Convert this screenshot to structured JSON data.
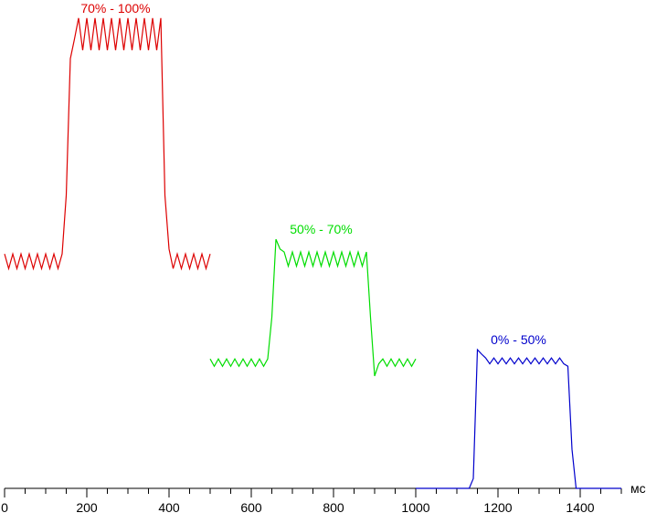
{
  "chart_data": {
    "type": "line",
    "xlabel": "мс",
    "xlim": [
      0,
      1500
    ],
    "ylim": [
      0,
      100
    ],
    "xticks": [
      0,
      200,
      400,
      600,
      800,
      1000,
      1200,
      1400
    ],
    "xminorticks": [
      0,
      50,
      100,
      150,
      200,
      250,
      300,
      350,
      400,
      450,
      500,
      550,
      600,
      650,
      700,
      750,
      800,
      850,
      900,
      950,
      1000,
      1050,
      1100,
      1150,
      1200,
      1250,
      1300,
      1350,
      1400,
      1450,
      1500
    ],
    "series": [
      {
        "name": "70% - 100%",
        "color": "#dd0000",
        "x": [
          0,
          10,
          20,
          30,
          40,
          50,
          60,
          70,
          80,
          90,
          100,
          110,
          120,
          130,
          140,
          150,
          160,
          170,
          180,
          190,
          200,
          210,
          220,
          230,
          240,
          250,
          260,
          270,
          280,
          290,
          300,
          310,
          320,
          330,
          340,
          350,
          360,
          370,
          380,
          390,
          400,
          410,
          420,
          430,
          440,
          450,
          460,
          470,
          480,
          490,
          500
        ],
        "values": [
          48,
          45,
          48,
          45,
          48,
          45,
          48,
          45,
          48,
          45,
          48,
          45,
          48,
          45,
          48,
          60,
          88,
          92,
          96.3,
          89.7,
          96.3,
          89.7,
          96.3,
          89.7,
          96.3,
          89.7,
          96.3,
          89.7,
          96.3,
          89.7,
          96.3,
          89.7,
          96.3,
          89.7,
          96.3,
          89.7,
          96.3,
          89.7,
          96.3,
          60,
          49,
          45,
          48,
          45,
          48,
          45,
          48,
          45,
          48,
          45,
          48
        ]
      },
      {
        "name": "50% - 70%",
        "color": "#00dd00",
        "x": [
          500,
          510,
          520,
          530,
          540,
          550,
          560,
          570,
          580,
          590,
          600,
          610,
          620,
          630,
          640,
          650,
          660,
          670,
          680,
          690,
          700,
          710,
          720,
          730,
          740,
          750,
          760,
          770,
          780,
          790,
          800,
          810,
          820,
          830,
          840,
          850,
          860,
          870,
          880,
          890,
          900,
          910,
          920,
          930,
          940,
          950,
          960,
          970,
          980,
          990,
          1000
        ],
        "values": [
          26.5,
          25,
          26.5,
          25,
          26.5,
          25,
          26.5,
          25,
          26.5,
          25,
          26.5,
          25,
          26.5,
          25,
          26.5,
          35,
          51,
          49,
          48.4,
          45.5,
          48.4,
          45.5,
          48.4,
          45.5,
          48.4,
          45.5,
          48.4,
          45.5,
          48.4,
          45.5,
          48.4,
          45.5,
          48.4,
          45.5,
          48.4,
          45.5,
          48.4,
          45.5,
          48.4,
          35,
          23,
          25.5,
          26.5,
          25,
          26.5,
          25,
          26.5,
          25,
          26.5,
          25,
          26.5
        ]
      },
      {
        "name": "0% - 50%",
        "color": "#0000cc",
        "x": [
          1000,
          1010,
          1020,
          1030,
          1040,
          1050,
          1060,
          1070,
          1080,
          1090,
          1100,
          1110,
          1120,
          1130,
          1140,
          1150,
          1160,
          1170,
          1180,
          1190,
          1200,
          1210,
          1220,
          1230,
          1240,
          1250,
          1260,
          1270,
          1280,
          1290,
          1300,
          1310,
          1320,
          1330,
          1340,
          1350,
          1360,
          1370,
          1380,
          1390,
          1400,
          1410,
          1420,
          1430,
          1440,
          1450,
          1460,
          1470,
          1480,
          1490,
          1500
        ],
        "values": [
          0,
          0,
          0,
          0,
          0,
          0,
          0,
          0,
          0,
          0,
          0,
          0,
          0,
          0,
          2,
          28.4,
          27.5,
          26.7,
          25.5,
          26.7,
          25.5,
          26.7,
          25.5,
          26.7,
          25.5,
          26.7,
          25.5,
          26.7,
          25.5,
          26.7,
          25.5,
          26.7,
          25.5,
          26.7,
          25.5,
          26.7,
          25.5,
          25,
          8,
          0,
          0,
          0,
          0,
          0,
          0,
          0,
          0,
          0,
          0,
          0,
          0
        ]
      }
    ]
  }
}
